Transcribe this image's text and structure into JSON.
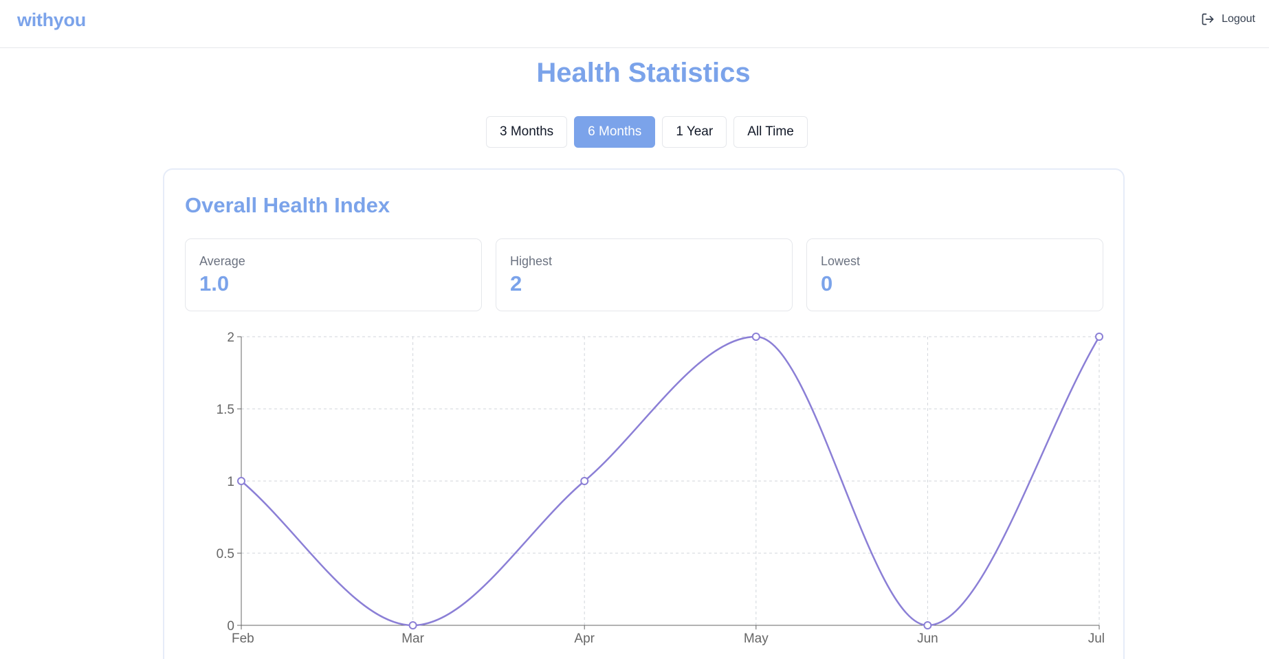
{
  "app": {
    "logo": "withyou",
    "logout_label": "Logout"
  },
  "page": {
    "title": "Health Statistics"
  },
  "range_tabs": [
    {
      "label": "3 Months",
      "active": false
    },
    {
      "label": "6 Months",
      "active": true
    },
    {
      "label": "1 Year",
      "active": false
    },
    {
      "label": "All Time",
      "active": false
    }
  ],
  "card": {
    "title": "Overall Health Index",
    "stats": [
      {
        "label": "Average",
        "value": "1.0"
      },
      {
        "label": "Highest",
        "value": "2"
      },
      {
        "label": "Lowest",
        "value": "0"
      }
    ]
  },
  "colors": {
    "accent": "#7ba3ea",
    "line": "#8b7fd6",
    "grid": "#d1d5db"
  },
  "chart_data": {
    "type": "line",
    "categories": [
      "Feb",
      "Mar",
      "Apr",
      "May",
      "Jun",
      "Jul"
    ],
    "series": [
      {
        "values": [
          1,
          0,
          1,
          2,
          0,
          2
        ]
      }
    ],
    "yticks": [
      "0",
      "0.5",
      "1",
      "1.5",
      "2"
    ],
    "ylim": [
      0,
      2
    ],
    "grid": true,
    "curve": "smooth"
  }
}
